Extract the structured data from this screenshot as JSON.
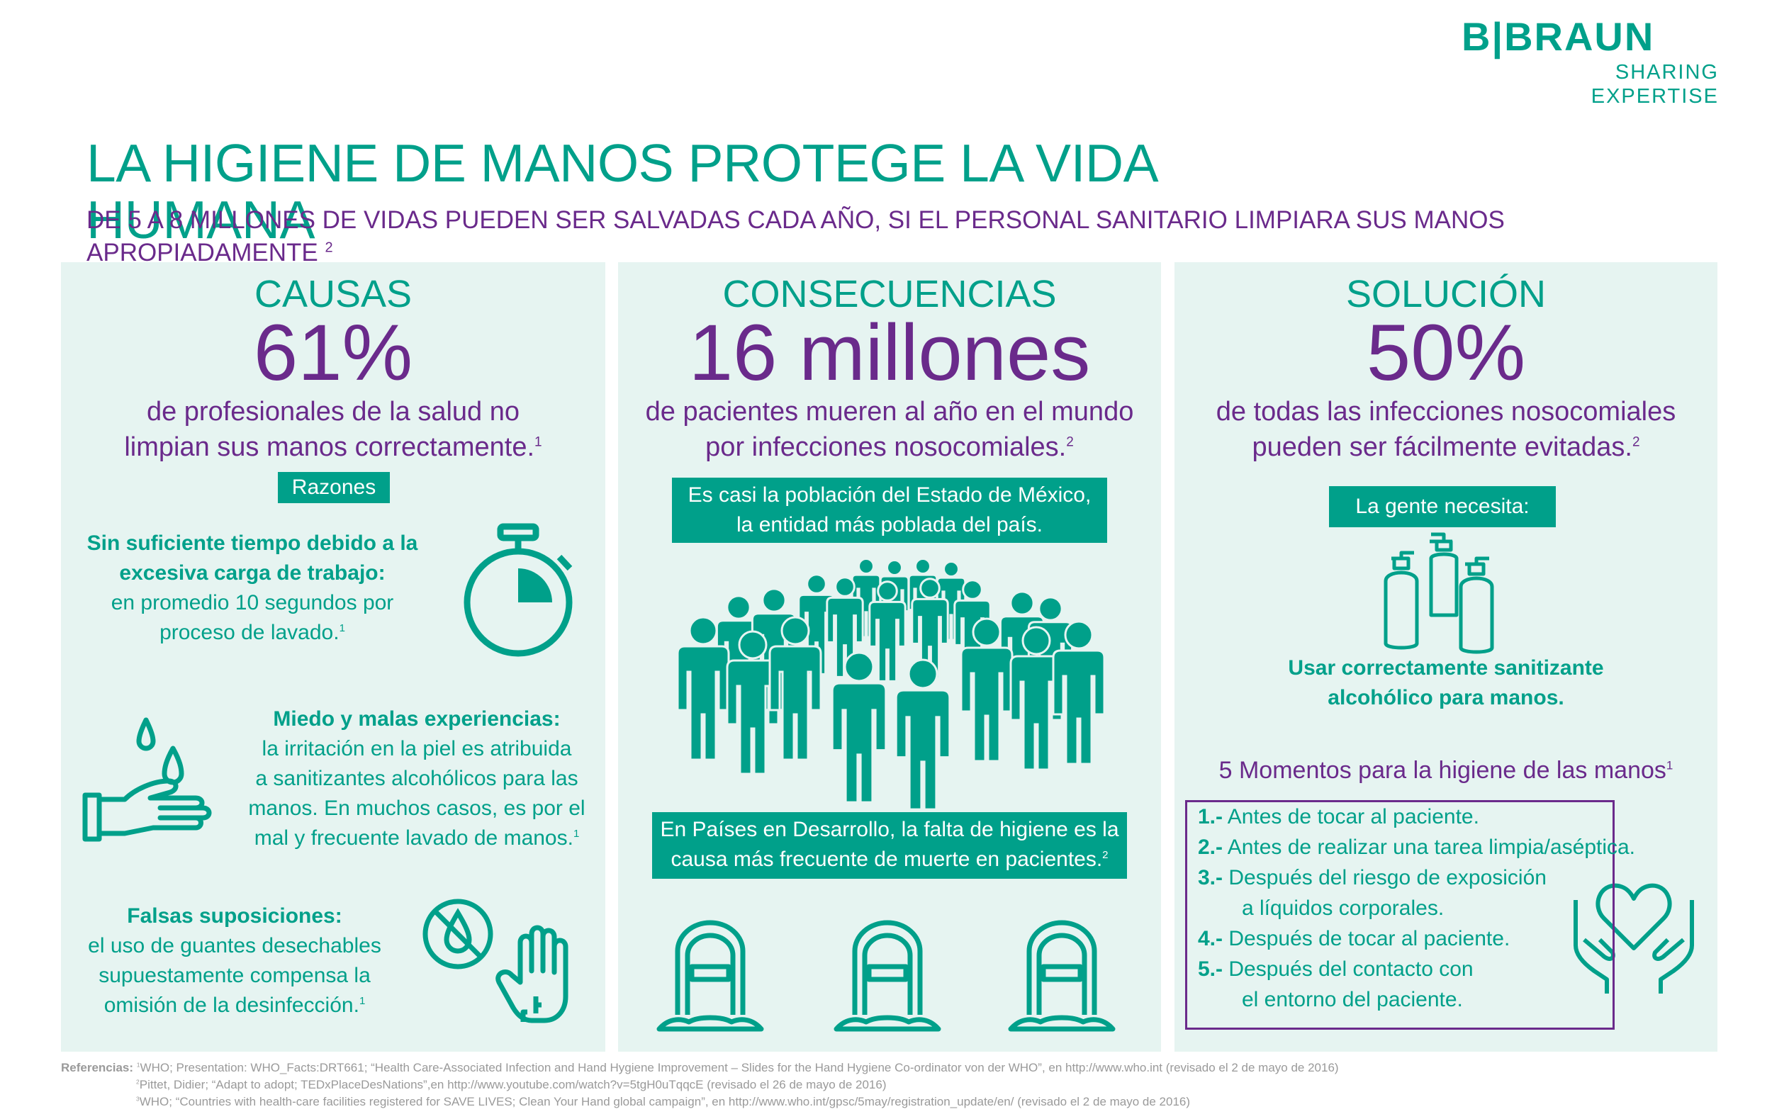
{
  "logo": {
    "main": "B|BRAUN",
    "tagline": "SHARING EXPERTISE"
  },
  "header": {
    "title": "LA HIGIENE DE MANOS PROTEGE LA VIDA HUMANA",
    "subtitle": "DE 5 A 8 MILLONES DE VIDAS PUEDEN SER SALVADAS CADA AÑO, SI EL PERSONAL SANITARIO LIMPIARA SUS MANOS APROPIADAMENTE",
    "subtitle_ref": "2"
  },
  "causas": {
    "title": "CAUSAS",
    "stat": "61%",
    "desc_line1": "de profesionales de la salud no",
    "desc_line2": "limpian sus manos correctamente.",
    "desc_ref": "1",
    "reasons_label": "Razones",
    "reason1": {
      "bold1": "Sin suficiente tiempo debido a la",
      "bold2": "excesiva carga de trabajo:",
      "line1": "en promedio 10 segundos por",
      "line2": "proceso de lavado.",
      "ref": "1"
    },
    "reason2": {
      "bold": "Miedo y malas experiencias:",
      "line1": "la irritación en la piel es atribuida",
      "line2": "a sanitizantes alcohólicos para las",
      "line3": "manos. En muchos casos, es por el",
      "line4": "mal y frecuente lavado de manos.",
      "ref": "1"
    },
    "reason3": {
      "bold": "Falsas suposiciones:",
      "line1": "el uso de guantes desechables",
      "line2": "supuestamente compensa la",
      "line3": "omisión de la desinfección.",
      "ref": "1"
    }
  },
  "consecuencias": {
    "title": "CONSECUENCIAS",
    "stat": "16 millones",
    "desc_line1": "de pacientes mueren al año en el mundo",
    "desc_line2": "por infecciones nosocomiales.",
    "desc_ref": "2",
    "note1_line1": "Es casi la población del Estado de México,",
    "note1_line2": "la entidad más poblada del país.",
    "note2_line1": "En Países en Desarrollo, la falta de higiene es la",
    "note2_line2": "causa más frecuente de muerte en pacientes.",
    "note2_ref": "2"
  },
  "solucion": {
    "title": "SOLUCIÓN",
    "stat": "50%",
    "desc_line1": "de todas las infecciones nosocomiales",
    "desc_line2": "pueden ser fácilmente evitadas.",
    "desc_ref": "2",
    "needs_label": "La gente necesita:",
    "needs_line1": "Usar correctamente sanitizante",
    "needs_line2": "alcohólico para manos.",
    "moments_title": "5 Momentos para la higiene de las manos",
    "moments_ref": "1",
    "moments": [
      {
        "num": "1.-",
        "text": "Antes de tocar al paciente."
      },
      {
        "num": "2.-",
        "text": "Antes de realizar una tarea limpia/aséptica."
      },
      {
        "num": "3.-",
        "text": "Después del riesgo de exposición",
        "cont": "a líquidos corporales."
      },
      {
        "num": "4.-",
        "text": "Después de tocar al paciente."
      },
      {
        "num": "5.-",
        "text": "Después del contacto con",
        "cont": "el entorno del paciente."
      }
    ]
  },
  "references": {
    "label": "Referencias:",
    "ref1": "WHO; Presentation: WHO_Facts:DRT661; “Health Care-Associated Infection and Hand Hygiene Improvement – Slides for the Hand Hygiene Co-ordinator von der WHO”, en http://www.who.int (revisado el 2 de mayo de 2016)",
    "ref2": "Pittet, Didier; “Adapt to adopt; TEDxPlaceDesNations”,en http://www.youtube.com/watch?v=5tgH0uTqqcE (revisado el 26 de mayo de 2016)",
    "ref3": "WHO; “Countries with health-care facilities registered for SAVE LIVES; Clean Your Hand global campaign”, en http://www.who.int/gpsc/5may/registration_update/en/ (revisado el 2 de mayo de 2016)",
    "n1": "1",
    "n2": "2",
    "n3": "3"
  },
  "colors": {
    "teal": "#00a08a",
    "purple": "#6a2a8b",
    "panel": "#e6f4f1"
  },
  "icons": [
    "stopwatch-icon",
    "hand-drop-icon",
    "no-water-icon",
    "glove-icon",
    "crowd-icon",
    "tombstone-icon",
    "sanitizer-bottles-icon",
    "heart-hands-icon"
  ]
}
